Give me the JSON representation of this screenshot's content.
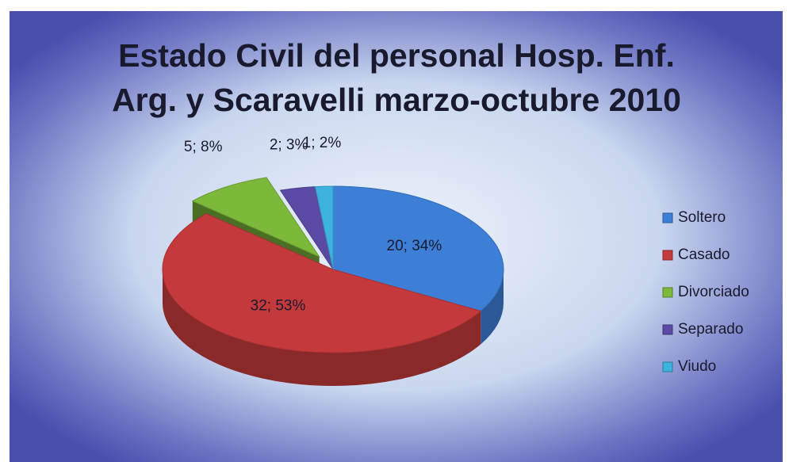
{
  "chart_data": {
    "type": "pie",
    "title": "Estado Civil del personal Hosp. Enf. Arg. y Scaravelli marzo-octubre 2010",
    "categories": [
      "Soltero",
      "Casado",
      "Divorciado",
      "Separado",
      "Viudo"
    ],
    "values": [
      20,
      32,
      5,
      2,
      1
    ],
    "value_labels": [
      "20; 34%",
      "32; 53%",
      "5; 8%",
      "2; 3%",
      "1; 2%"
    ],
    "colors": [
      "#3d7fd6",
      "#c43a3c",
      "#7cb83a",
      "#5b4aa3",
      "#3cb2dc"
    ],
    "exploded": [
      "Divorciado"
    ],
    "legend": "right"
  }
}
